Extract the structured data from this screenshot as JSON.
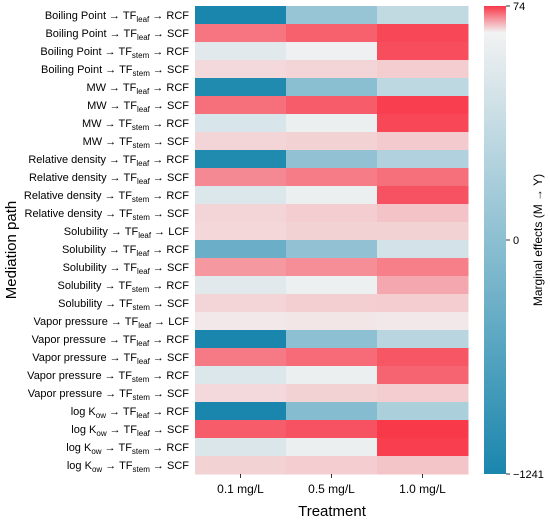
{
  "chart_data": {
    "type": "heatmap",
    "xlabel": "Treatment",
    "ylabel": "Mediation path",
    "columns": [
      "0.1 mg/L",
      "0.5 mg/L",
      "1.0 mg/L"
    ],
    "rows": [
      {
        "src": "Boiling Point",
        "mid": "TF",
        "mid_sub": "leaf",
        "dst": "RCF"
      },
      {
        "src": "Boiling Point",
        "mid": "TF",
        "mid_sub": "leaf",
        "dst": "SCF"
      },
      {
        "src": "Boiling Point",
        "mid": "TF",
        "mid_sub": "stem",
        "dst": "RCF"
      },
      {
        "src": "Boiling Point",
        "mid": "TF",
        "mid_sub": "stem",
        "dst": "SCF"
      },
      {
        "src": "MW",
        "mid": "TF",
        "mid_sub": "leaf",
        "dst": "RCF"
      },
      {
        "src": "MW",
        "mid": "TF",
        "mid_sub": "leaf",
        "dst": "SCF"
      },
      {
        "src": "MW",
        "mid": "TF",
        "mid_sub": "stem",
        "dst": "RCF"
      },
      {
        "src": "MW",
        "mid": "TF",
        "mid_sub": "stem",
        "dst": "SCF"
      },
      {
        "src": "Relative density",
        "mid": "TF",
        "mid_sub": "leaf",
        "dst": "RCF"
      },
      {
        "src": "Relative density",
        "mid": "TF",
        "mid_sub": "leaf",
        "dst": "SCF"
      },
      {
        "src": "Relative density",
        "mid": "TF",
        "mid_sub": "stem",
        "dst": "RCF"
      },
      {
        "src": "Relative density",
        "mid": "TF",
        "mid_sub": "stem",
        "dst": "SCF"
      },
      {
        "src": "Solubility",
        "mid": "TF",
        "mid_sub": "leaf",
        "dst": "LCF"
      },
      {
        "src": "Solubility",
        "mid": "TF",
        "mid_sub": "leaf",
        "dst": "RCF"
      },
      {
        "src": "Solubility",
        "mid": "TF",
        "mid_sub": "leaf",
        "dst": "SCF"
      },
      {
        "src": "Solubility",
        "mid": "TF",
        "mid_sub": "stem",
        "dst": "RCF"
      },
      {
        "src": "Solubility",
        "mid": "TF",
        "mid_sub": "stem",
        "dst": "SCF"
      },
      {
        "src": "Vapor pressure",
        "mid": "TF",
        "mid_sub": "leaf",
        "dst": "LCF"
      },
      {
        "src": "Vapor pressure",
        "mid": "TF",
        "mid_sub": "leaf",
        "dst": "RCF"
      },
      {
        "src": "Vapor pressure",
        "mid": "TF",
        "mid_sub": "leaf",
        "dst": "SCF"
      },
      {
        "src": "Vapor pressure",
        "mid": "TF",
        "mid_sub": "stem",
        "dst": "RCF"
      },
      {
        "src": "Vapor pressure",
        "mid": "TF",
        "mid_sub": "stem",
        "dst": "SCF"
      },
      {
        "src": "log K",
        "src_sub": "ow",
        "mid": "TF",
        "mid_sub": "leaf",
        "dst": "RCF"
      },
      {
        "src": "log K",
        "src_sub": "ow",
        "mid": "TF",
        "mid_sub": "leaf",
        "dst": "SCF"
      },
      {
        "src": "log K",
        "src_sub": "ow",
        "mid": "TF",
        "mid_sub": "stem",
        "dst": "RCF"
      },
      {
        "src": "log K",
        "src_sub": "ow",
        "mid": "TF",
        "mid_sub": "stem",
        "dst": "SCF"
      }
    ],
    "values": [
      [
        -1241,
        -520,
        -280
      ],
      [
        50,
        58,
        68
      ],
      [
        -100,
        -25,
        66
      ],
      [
        10,
        12,
        15
      ],
      [
        -1200,
        -600,
        -300
      ],
      [
        52,
        60,
        72
      ],
      [
        -150,
        -40,
        68
      ],
      [
        12,
        13,
        16
      ],
      [
        -1200,
        -560,
        -380
      ],
      [
        42,
        47,
        52
      ],
      [
        -130,
        -40,
        64
      ],
      [
        12,
        15,
        19
      ],
      [
        11,
        13,
        13
      ],
      [
        -780,
        -560,
        -180
      ],
      [
        36,
        40,
        46
      ],
      [
        -100,
        -28,
        30
      ],
      [
        12,
        14,
        15
      ],
      [
        4,
        5,
        4
      ],
      [
        -1241,
        -580,
        -330
      ],
      [
        48,
        54,
        62
      ],
      [
        -130,
        -40,
        57
      ],
      [
        10,
        13,
        15
      ],
      [
        -1241,
        -620,
        -400
      ],
      [
        60,
        64,
        74
      ],
      [
        -140,
        -40,
        72
      ],
      [
        13,
        15,
        18
      ]
    ],
    "colorbar": {
      "label": "Marginal effects (M → Y)",
      "min": -1241,
      "mid": 0,
      "max": 74,
      "ticks": [
        "74",
        "0",
        "−1241"
      ],
      "colors": {
        "low": "#1a86ad",
        "mid": "#f2f2f2",
        "high": "#f8394a"
      }
    }
  }
}
